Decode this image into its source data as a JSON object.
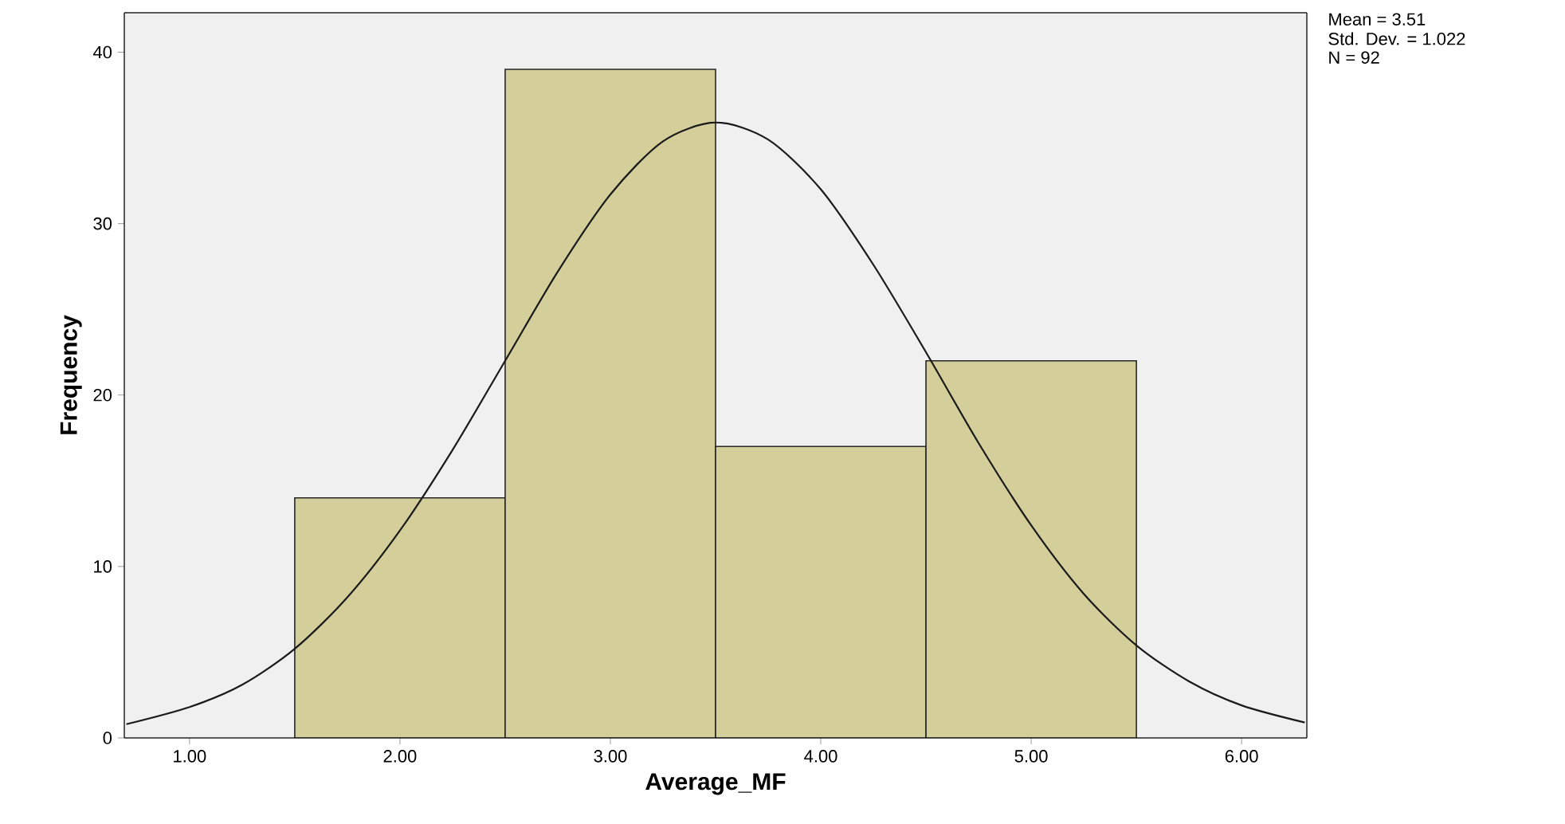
{
  "chart_data": {
    "type": "histogram",
    "xlabel": "Average_MF",
    "ylabel": "Frequency",
    "bins": [
      1.5,
      2.5,
      3.5,
      4.5,
      5.5
    ],
    "values": [
      14,
      39,
      17,
      22
    ],
    "color": "#d3ce9a",
    "xlim": [
      0.69,
      6.31
    ],
    "ylim": [
      0,
      42.3
    ],
    "xticks": [
      {
        "value": 1,
        "label": "1.00"
      },
      {
        "value": 2,
        "label": "2.00"
      },
      {
        "value": 3,
        "label": "3.00"
      },
      {
        "value": 4,
        "label": "4.00"
      },
      {
        "value": 5,
        "label": "5.00"
      },
      {
        "value": 6,
        "label": "6.00"
      }
    ],
    "yticks": [
      0,
      10,
      20,
      30,
      40
    ],
    "series": [
      {
        "type": "line",
        "color": "#1a1a1a",
        "x": [
          0.7,
          1.0,
          1.25,
          1.5,
          1.75,
          2.0,
          2.25,
          2.5,
          2.75,
          3.0,
          3.25,
          3.5,
          3.75,
          4.0,
          4.25,
          4.5,
          4.75,
          5.0,
          5.25,
          5.5,
          5.75,
          6.0,
          6.3
        ],
        "values": [
          0.8,
          1.8,
          3.1,
          5.2,
          8.2,
          12.1,
          16.8,
          22.0,
          27.2,
          31.7,
          34.8,
          35.9,
          34.9,
          32.0,
          27.6,
          22.5,
          17.2,
          12.4,
          8.4,
          5.4,
          3.3,
          1.9,
          0.9
        ]
      }
    ],
    "annotations": [
      "Mean = 3.51",
      "Std. Dev. = 1.022",
      "N = 92"
    ]
  }
}
